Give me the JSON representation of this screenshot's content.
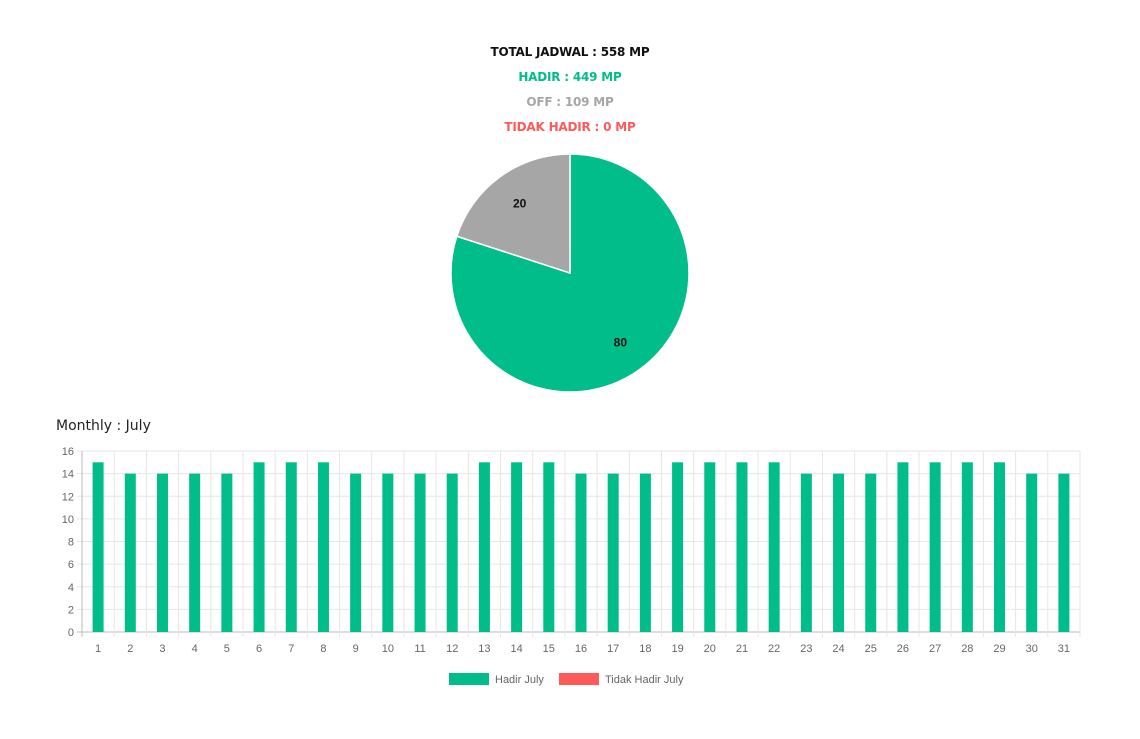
{
  "summary": {
    "total": "TOTAL JADWAL : 558 MP",
    "hadir": "HADIR : 449 MP",
    "off": "OFF : 109 MP",
    "tidak_hadir": "TIDAK HADIR : 0 MP"
  },
  "colors": {
    "green": "#00bd8a",
    "gray": "#a6a6a6",
    "red": "#ff5a5a",
    "black": "#111111"
  },
  "monthly_title": "Monthly : July",
  "chart_data": [
    {
      "type": "pie",
      "slices": [
        {
          "label": "80",
          "value": 80,
          "color": "#00bd8a"
        },
        {
          "label": "20",
          "value": 20,
          "color": "#a6a6a6"
        }
      ]
    },
    {
      "type": "bar",
      "categories": [
        "1",
        "2",
        "3",
        "4",
        "5",
        "6",
        "7",
        "8",
        "9",
        "10",
        "11",
        "12",
        "13",
        "14",
        "15",
        "16",
        "17",
        "18",
        "19",
        "20",
        "21",
        "22",
        "23",
        "24",
        "25",
        "26",
        "27",
        "28",
        "29",
        "30",
        "31"
      ],
      "series": [
        {
          "name": "Hadir July",
          "color": "#00bd8a",
          "values": [
            15,
            14,
            14,
            14,
            14,
            15,
            15,
            15,
            14,
            14,
            14,
            14,
            15,
            15,
            15,
            14,
            14,
            14,
            15,
            15,
            15,
            15,
            14,
            14,
            14,
            15,
            15,
            15,
            15,
            14,
            14
          ]
        },
        {
          "name": "Tidak Hadir July",
          "color": "#ff5a5a",
          "values": [
            0,
            0,
            0,
            0,
            0,
            0,
            0,
            0,
            0,
            0,
            0,
            0,
            0,
            0,
            0,
            0,
            0,
            0,
            0,
            0,
            0,
            0,
            0,
            0,
            0,
            0,
            0,
            0,
            0,
            0,
            0
          ]
        }
      ],
      "ylim": [
        0,
        16
      ],
      "yticks": [
        0,
        2,
        4,
        6,
        8,
        10,
        12,
        14,
        16
      ],
      "grid": true,
      "legend": "bottom"
    }
  ]
}
